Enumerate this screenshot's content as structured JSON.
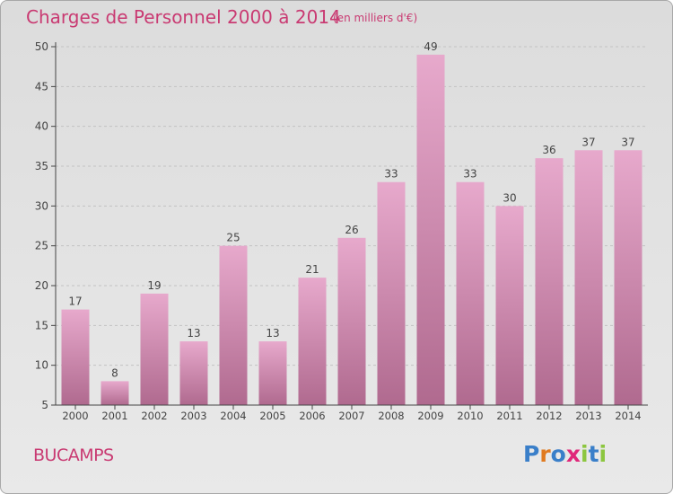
{
  "title": "Charges de Personnel 2000 à 2014",
  "subtitle": "(en milliers d'€)",
  "commune": "BUCAMPS",
  "logo": {
    "text": "Proxiti",
    "letters": [
      {
        "char": "P",
        "color": "#3a7fc9"
      },
      {
        "char": "r",
        "color": "#e07a20"
      },
      {
        "char": "o",
        "color": "#3a7fc9"
      },
      {
        "char": "x",
        "color": "#e0287a"
      },
      {
        "char": "i",
        "color": "#8cc63f"
      },
      {
        "char": "t",
        "color": "#3a7fc9"
      },
      {
        "char": "i",
        "color": "#8cc63f"
      }
    ]
  },
  "colors": {
    "bar_top": "#e7a9cc",
    "bar_bottom": "#b06a8f",
    "accent": "#c93a72",
    "axis": "#444444"
  },
  "chart_data": {
    "type": "bar",
    "categories": [
      "2000",
      "2001",
      "2002",
      "2003",
      "2004",
      "2005",
      "2006",
      "2007",
      "2008",
      "2009",
      "2010",
      "2011",
      "2012",
      "2013",
      "2014"
    ],
    "values": [
      17,
      8,
      19,
      13,
      25,
      13,
      21,
      26,
      33,
      49,
      33,
      30,
      36,
      37,
      37
    ],
    "ylim": [
      5,
      50
    ],
    "yticks": [
      5,
      10,
      15,
      20,
      25,
      30,
      35,
      40,
      45,
      50
    ],
    "grid": true,
    "title": "Charges de Personnel 2000 à 2014",
    "xlabel": "",
    "ylabel": ""
  }
}
